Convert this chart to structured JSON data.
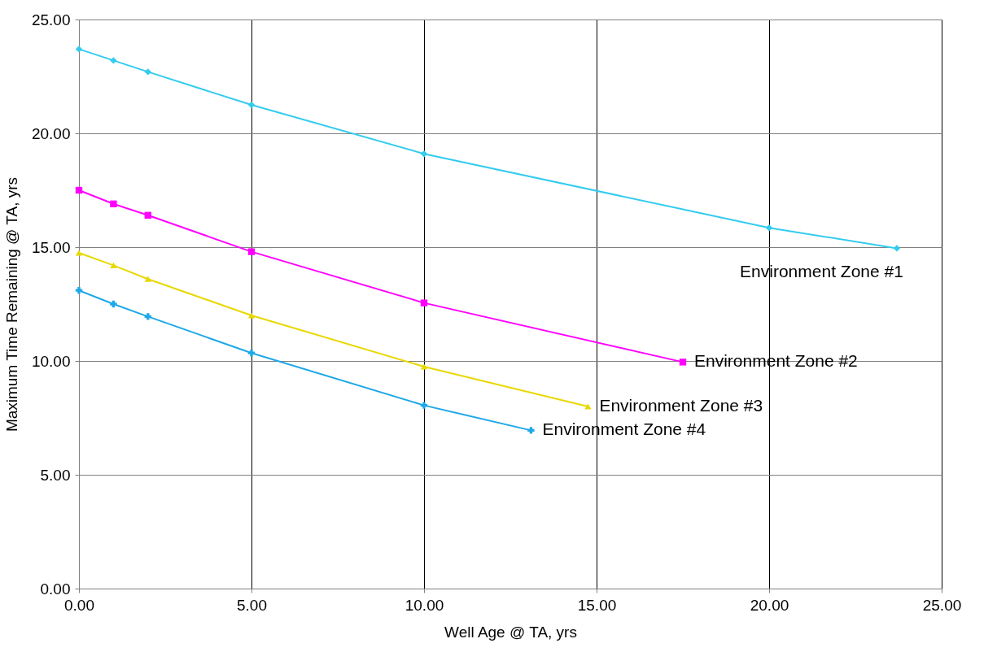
{
  "chart_data": {
    "type": "line",
    "xlabel": "Well Age @ TA, yrs",
    "ylabel": "Maximum Time Remaining @ TA, yrs",
    "xlim": [
      0,
      25
    ],
    "ylim": [
      0,
      25
    ],
    "xticks": [
      {
        "value": 0,
        "label": "0.00"
      },
      {
        "value": 5,
        "label": "5.00"
      },
      {
        "value": 10,
        "label": "10.00"
      },
      {
        "value": 15,
        "label": "15.00"
      },
      {
        "value": 20,
        "label": "20.00"
      },
      {
        "value": 25,
        "label": "25.00"
      }
    ],
    "yticks": [
      {
        "value": 0,
        "label": "0.00"
      },
      {
        "value": 5,
        "label": "5.00"
      },
      {
        "value": 10,
        "label": "10.00"
      },
      {
        "value": 15,
        "label": "15.00"
      },
      {
        "value": 20,
        "label": "20.00"
      },
      {
        "value": 25,
        "label": "25.00"
      }
    ],
    "grid": true,
    "series": [
      {
        "name": "Environment Zone #1",
        "color": "#33ccee",
        "marker": "diamond",
        "x": [
          0,
          1,
          2,
          5,
          10,
          20,
          23.7
        ],
        "values": [
          23.7,
          23.2,
          22.7,
          21.25,
          19.1,
          15.85,
          14.95
        ]
      },
      {
        "name": "Environment Zone #2",
        "color": "#ff00ff",
        "marker": "square",
        "x": [
          0,
          1,
          2,
          5,
          10,
          17.5
        ],
        "values": [
          17.5,
          16.9,
          16.4,
          14.8,
          12.55,
          9.95
        ]
      },
      {
        "name": "Environment Zone #3",
        "color": "#e8d800",
        "marker": "triangle",
        "x": [
          0,
          1,
          2,
          5,
          10,
          14.75
        ],
        "values": [
          14.75,
          14.2,
          13.6,
          12.0,
          9.75,
          8.0
        ]
      },
      {
        "name": "Environment Zone #4",
        "color": "#1ea8e8",
        "marker": "cross",
        "x": [
          0,
          1,
          2,
          5,
          10,
          13.1
        ],
        "values": [
          13.1,
          12.5,
          11.95,
          10.35,
          8.05,
          6.95
        ]
      }
    ]
  }
}
